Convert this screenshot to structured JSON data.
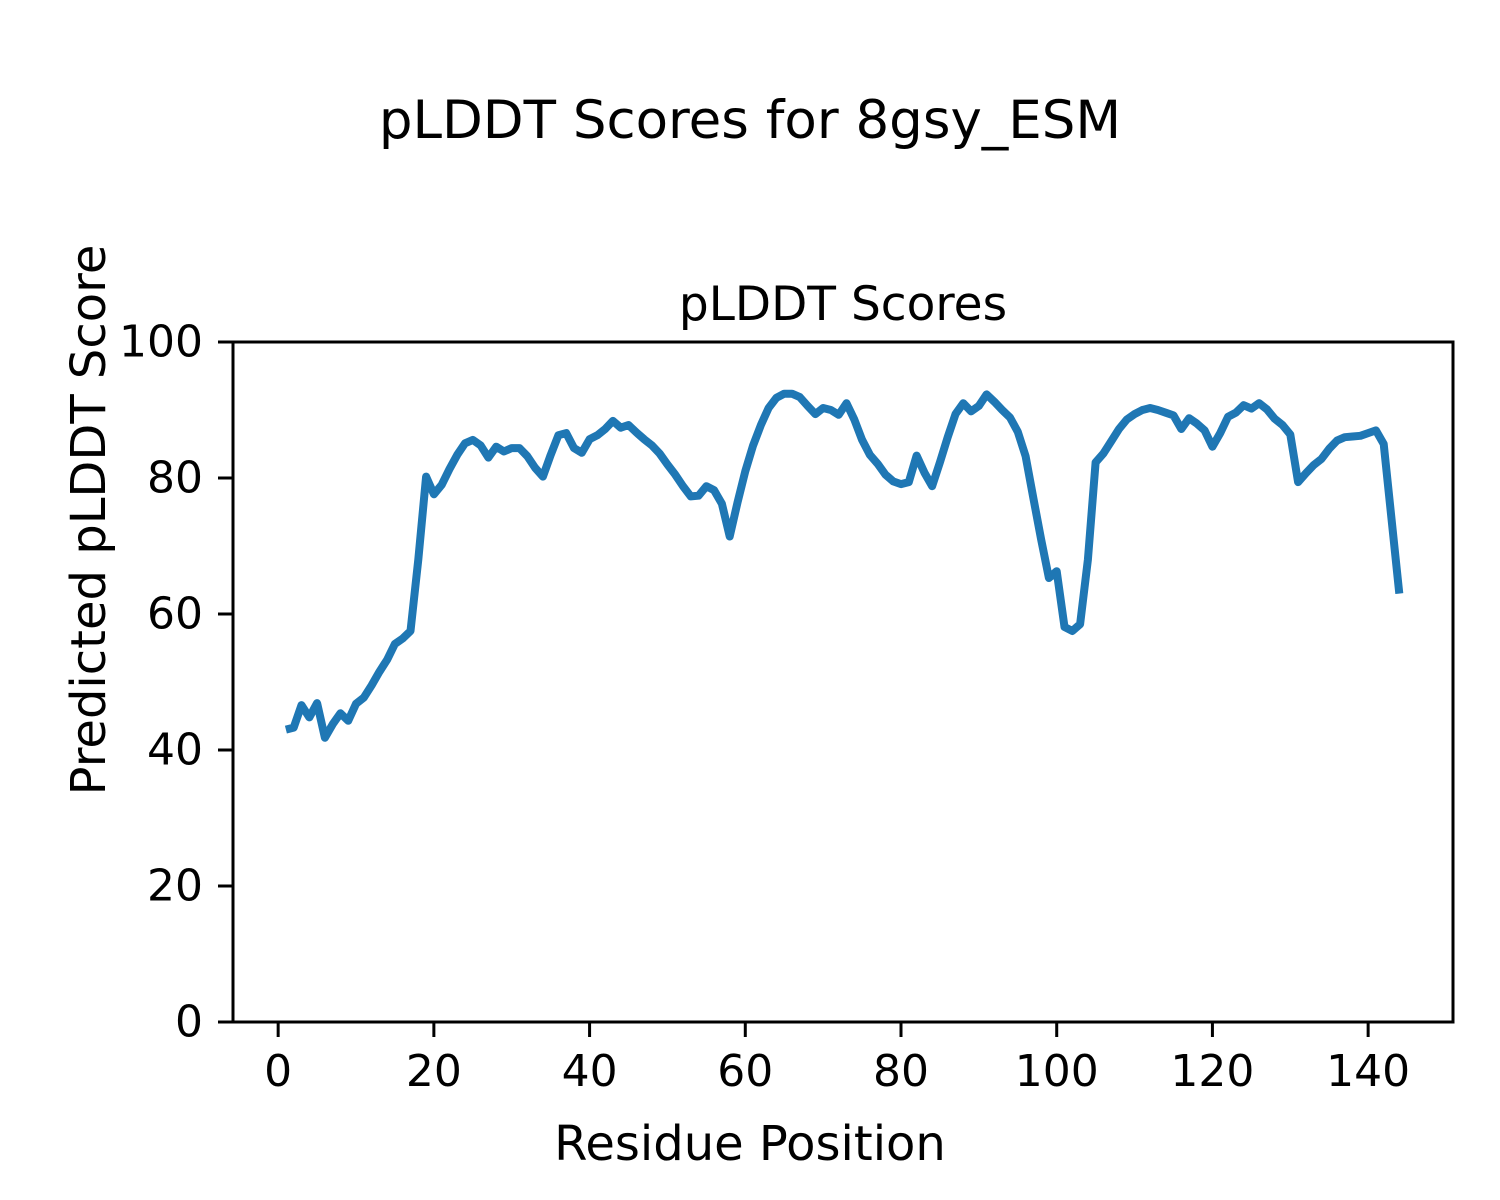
{
  "figure": {
    "suptitle": "pLDDT Scores for 8gsy_ESM",
    "background_color": "#ffffff"
  },
  "chart_data": {
    "type": "line",
    "title": "pLDDT Scores",
    "xlabel": "Residue Position",
    "ylabel": "Predicted pLDDT Score",
    "grid": false,
    "legend": null,
    "line_color": "#1f77b4",
    "spine_color": "#000000",
    "xlim": [
      -5.8,
      150.9
    ],
    "ylim": [
      0,
      100
    ],
    "x_tick_values": [
      0,
      20,
      40,
      60,
      80,
      100,
      120,
      140
    ],
    "x_tick_labels": [
      "0",
      "20",
      "40",
      "60",
      "80",
      "100",
      "120",
      "140"
    ],
    "y_tick_values": [
      0,
      20,
      40,
      60,
      80,
      100
    ],
    "y_tick_labels": [
      "0",
      "20",
      "40",
      "60",
      "80",
      "100"
    ],
    "x_start": 1,
    "x_step": 1,
    "n_points": 144,
    "y": [
      43.0,
      43.3,
      46.6,
      44.8,
      46.9,
      41.8,
      43.8,
      45.4,
      44.3,
      46.8,
      47.7,
      49.5,
      51.5,
      53.3,
      55.6,
      56.4,
      57.5,
      68.0,
      80.2,
      77.6,
      79.0,
      81.3,
      83.4,
      85.1,
      85.6,
      84.8,
      83.0,
      84.6,
      83.9,
      84.4,
      84.4,
      83.2,
      81.5,
      80.2,
      83.4,
      86.3,
      86.6,
      84.4,
      83.7,
      85.7,
      86.3,
      87.2,
      88.4,
      87.4,
      87.8,
      86.7,
      85.7,
      84.8,
      83.6,
      82.0,
      80.5,
      78.8,
      77.3,
      77.4,
      78.8,
      78.2,
      76.2,
      71.4,
      76.4,
      81.0,
      84.8,
      87.8,
      90.3,
      91.8,
      92.4,
      92.4,
      91.9,
      90.6,
      89.4,
      90.3,
      90.0,
      89.3,
      91.0,
      88.6,
      85.6,
      83.4,
      82.1,
      80.5,
      79.5,
      79.1,
      79.4,
      83.3,
      80.8,
      78.8,
      82.3,
      86.0,
      89.4,
      91.0,
      89.8,
      90.6,
      92.3,
      91.2,
      90.0,
      88.9,
      86.8,
      83.2,
      77.0,
      71.0,
      65.3,
      66.3,
      58.1,
      57.5,
      58.5,
      68.0,
      82.3,
      83.6,
      85.4,
      87.2,
      88.6,
      89.4,
      90.0,
      90.3,
      90.0,
      89.6,
      89.2,
      87.2,
      88.8,
      88.0,
      87.0,
      84.6,
      86.6,
      89.0,
      89.6,
      90.7,
      90.2,
      91.0,
      90.1,
      88.7,
      87.8,
      86.4,
      79.4,
      80.7,
      81.9,
      82.8,
      84.3,
      85.5,
      86.0,
      86.1,
      86.2,
      86.6,
      87.0,
      85.0,
      74.0,
      63.0
    ]
  }
}
